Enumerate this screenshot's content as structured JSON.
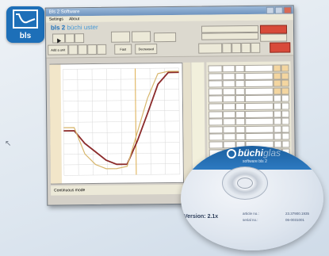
{
  "logo": {
    "text": "bls",
    "icon": "reactor-curve-icon"
  },
  "window": {
    "title": "Bls 2 Software",
    "menu": [
      "Settings",
      "About"
    ],
    "brand_main": "bls 2",
    "brand_sub": "büchi",
    "brand_sub2": "uster",
    "buttons": [
      "Add a unit",
      "Fast",
      "Decreased"
    ],
    "status": "Continuous mode"
  },
  "chart_data": {
    "type": "line",
    "series": [
      {
        "color": "#8b2a2a",
        "values": [
          0.42,
          0.42,
          0.3,
          0.22,
          0.14,
          0.1,
          0.1,
          0.32,
          0.58,
          0.85,
          0.96,
          0.96
        ]
      },
      {
        "color": "#d8b76e",
        "values": [
          0.45,
          0.45,
          0.2,
          0.1,
          0.06,
          0.06,
          0.08,
          0.4,
          0.72,
          0.95,
          0.97,
          0.97
        ]
      }
    ]
  },
  "cd": {
    "brand": "büchi",
    "brand_suffix": "glas",
    "software": "software bls 2",
    "version": "Version: 2.1x",
    "meta1": "article no.:",
    "meta2": "serial no.:",
    "serial1": "23.37900.1935",
    "serial2": "06-0031001"
  }
}
